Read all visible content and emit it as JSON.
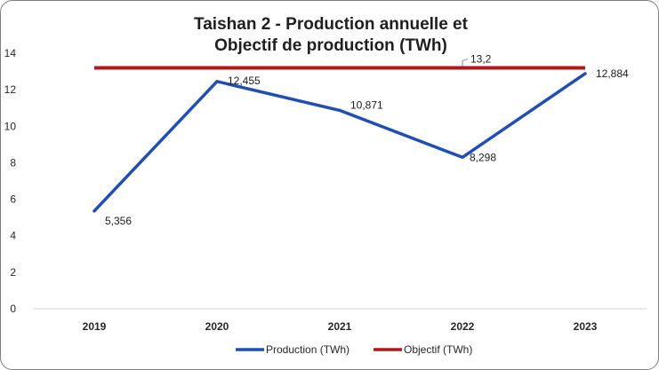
{
  "chart_data": {
    "type": "line",
    "title_lines": [
      "Taishan 2 - Production annuelle et",
      "Objectif de production (TWh)"
    ],
    "categories": [
      "2019",
      "2020",
      "2021",
      "2022",
      "2023"
    ],
    "series": [
      {
        "name": "Production (TWh)",
        "color": "#1f4fb4",
        "values": [
          5.356,
          12.455,
          10.871,
          8.298,
          12.884
        ],
        "labels": [
          "5,356",
          "12,455",
          "10,871",
          "8,298",
          "12,884"
        ]
      },
      {
        "name": "Objectif (TWh)",
        "color": "#b0161c",
        "values": [
          13.2,
          13.2,
          13.2,
          13.2,
          13.2
        ],
        "point_label": {
          "index": 3,
          "text": "13,2"
        }
      }
    ],
    "ylim": [
      0,
      14
    ],
    "yticks": [
      "0",
      "2",
      "4",
      "6",
      "8",
      "10",
      "12",
      "14"
    ],
    "grid": false,
    "legend_position": "bottom"
  }
}
